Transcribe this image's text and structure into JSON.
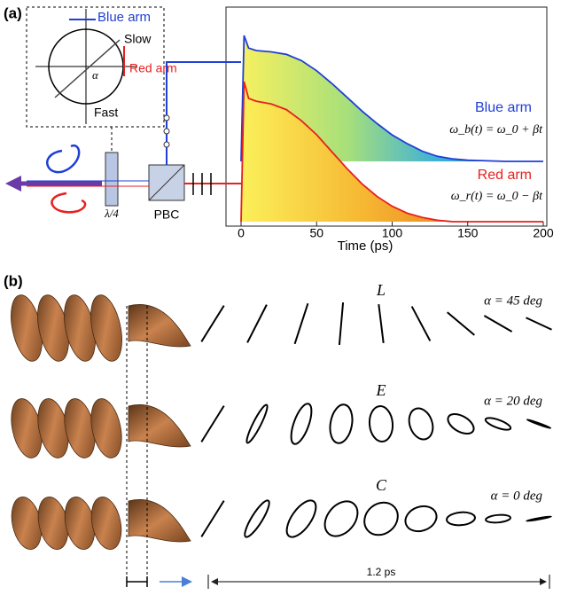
{
  "panel_a": {
    "label": "(a)",
    "diagram": {
      "blue_arm": "Blue arm",
      "slow": "Slow",
      "red_arm": "Red arm",
      "alpha": "α",
      "fast": "Fast",
      "waveplate": "λ/4",
      "pbc": "PBC"
    },
    "equations": {
      "blue": "ω_b(t) = ω_0 + βt",
      "red": "ω_r(t) = ω_0 − βt"
    }
  },
  "chart_data": {
    "type": "line",
    "xlabel": "Time (ps)",
    "xlim": [
      0,
      200
    ],
    "xticks": [
      0,
      50,
      100,
      150,
      200
    ],
    "ylim": [
      0,
      1
    ],
    "x": [
      0,
      2,
      5,
      10,
      20,
      30,
      40,
      50,
      60,
      70,
      80,
      90,
      100,
      110,
      120,
      130,
      140,
      150,
      175,
      200
    ],
    "series": [
      {
        "name": "Blue arm",
        "color": "#1f3fd6",
        "values": [
          0,
          1.0,
          0.9,
          0.88,
          0.87,
          0.85,
          0.8,
          0.72,
          0.62,
          0.51,
          0.4,
          0.3,
          0.21,
          0.14,
          0.08,
          0.04,
          0.02,
          0.01,
          0,
          0
        ]
      },
      {
        "name": "Red arm",
        "color": "#e8201f",
        "values": [
          0,
          1.0,
          0.88,
          0.86,
          0.84,
          0.8,
          0.72,
          0.62,
          0.5,
          0.38,
          0.27,
          0.18,
          0.11,
          0.06,
          0.03,
          0.01,
          0,
          0,
          0,
          0
        ]
      }
    ]
  },
  "panel_b": {
    "label": "(b)",
    "rows": [
      {
        "letter": "L",
        "alpha": "α = 45 deg"
      },
      {
        "letter": "E",
        "alpha": "α = 20 deg"
      },
      {
        "letter": "C",
        "alpha": "α = 0 deg"
      }
    ],
    "duration": "1.2 ps"
  }
}
